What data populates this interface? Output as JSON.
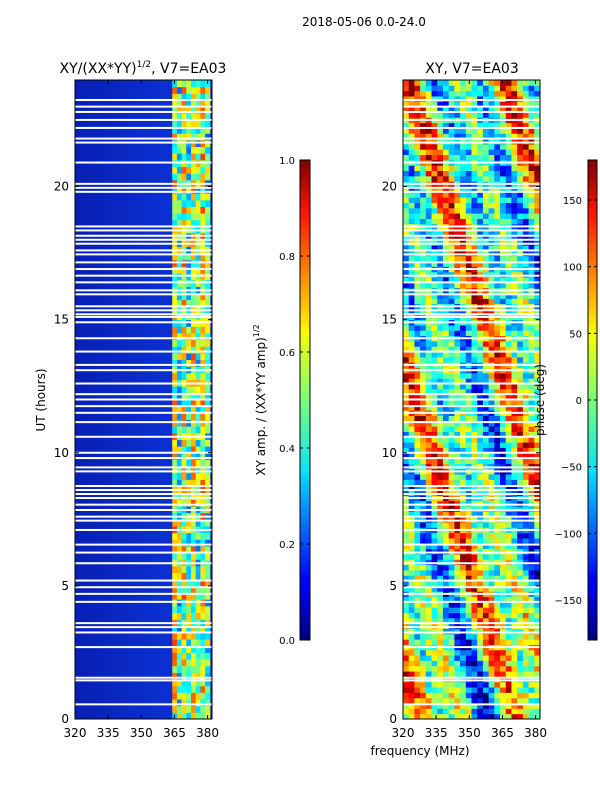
{
  "suptitle": "2018-05-06 0.0-24.0",
  "shared_xlabel": "frequency (MHz)",
  "chart_data": [
    {
      "type": "heatmap",
      "title": "XY/(XX*YY)",
      "title_sup": "1/2",
      "title_suffix": ", V7=EA03",
      "xlabel": "",
      "ylabel": "UT (hours)",
      "xlim": [
        320,
        382
      ],
      "ylim": [
        0,
        24
      ],
      "xticks": [
        320,
        335,
        350,
        365,
        380
      ],
      "yticks": [
        0,
        5,
        10,
        15,
        20
      ],
      "active_band_mhz": [
        364,
        381
      ],
      "colorbar": {
        "label": "XY amp. / (XX*YY amp)",
        "label_sup": "1/2",
        "range": [
          0.0,
          1.0
        ],
        "ticks": [
          "0.0",
          "0.2",
          "0.4",
          "0.6",
          "0.8",
          "1.0"
        ],
        "colormap": "jet"
      }
    },
    {
      "type": "heatmap",
      "title": "XY, V7=EA03",
      "xlabel": "frequency (MHz)",
      "ylabel": "",
      "xlim": [
        320,
        382
      ],
      "ylim": [
        0,
        24
      ],
      "xticks": [
        320,
        335,
        350,
        365,
        380
      ],
      "yticks": [
        0,
        5,
        10,
        15,
        20
      ],
      "colorbar": {
        "label": "phase (deg)",
        "range": [
          -180,
          180
        ],
        "ticks": [
          "−150",
          "−100",
          "−50",
          "0",
          "50",
          "100",
          "150"
        ],
        "tick_values": [
          -150,
          -100,
          -50,
          0,
          50,
          100,
          150
        ],
        "colormap": "jet"
      }
    }
  ],
  "flagged_ut_hours": [
    0.55,
    1.45,
    1.55,
    2.7,
    3.25,
    3.45,
    3.6,
    4.4,
    4.7,
    4.95,
    5.2,
    5.85,
    6.25,
    6.55,
    7.1,
    7.45,
    7.6,
    7.85,
    8.05,
    8.3,
    8.45,
    8.6,
    8.75,
    9.3,
    9.45,
    9.8,
    10.0,
    10.6,
    11.15,
    11.5,
    11.75,
    12.0,
    12.2,
    12.6,
    13.1,
    13.3,
    13.8,
    14.3,
    14.9,
    15.1,
    15.2,
    15.35,
    15.5,
    15.95,
    16.1,
    16.4,
    16.65,
    16.9,
    17.15,
    17.45,
    17.6,
    17.85,
    18.0,
    18.15,
    18.35,
    18.5,
    19.8,
    19.95,
    20.1,
    20.9,
    21.65,
    21.8,
    22.2,
    22.5,
    22.8,
    23.0,
    23.25
  ]
}
